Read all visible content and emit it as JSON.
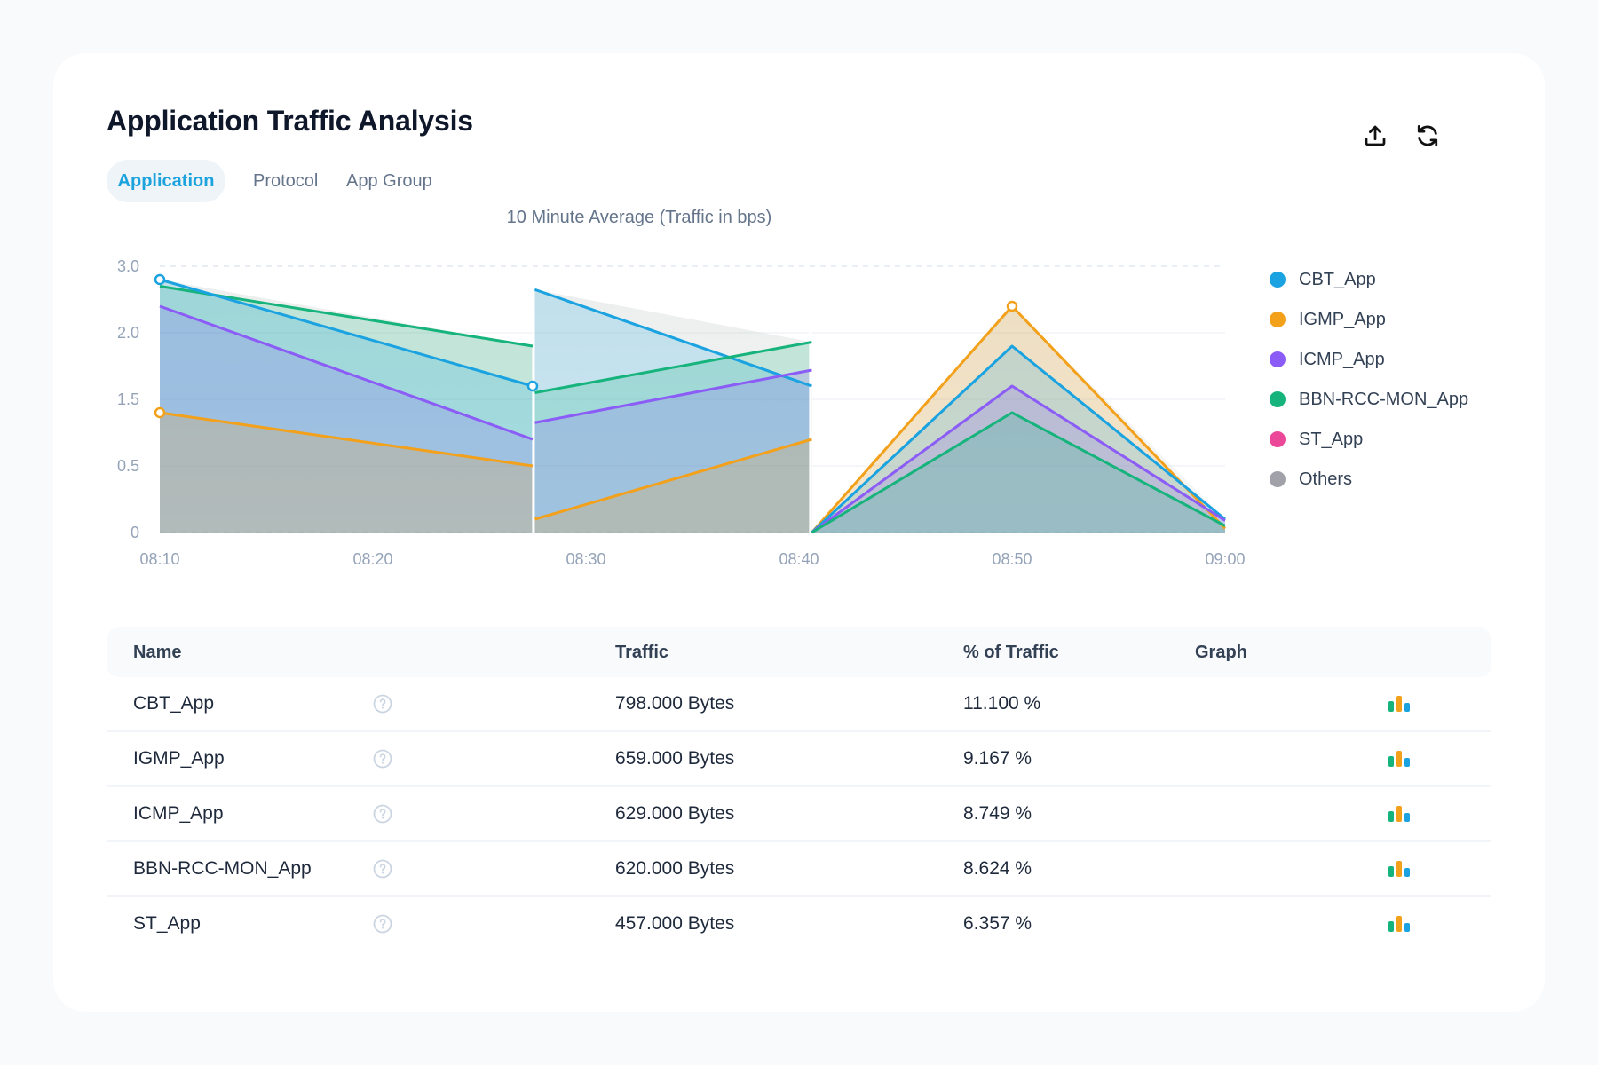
{
  "header": {
    "title": "Application Traffic Analysis",
    "actions": [
      {
        "name": "export",
        "icon": "upload-icon"
      },
      {
        "name": "refresh",
        "icon": "refresh-icon"
      }
    ]
  },
  "tabs": [
    {
      "label": "Application",
      "active": true
    },
    {
      "label": "Protocol",
      "active": false
    },
    {
      "label": "App Group",
      "active": false
    }
  ],
  "colors": {
    "accent": "#1ca3de",
    "CBT_App": "#1aa3e0",
    "IGMP_App": "#f3a01b",
    "ICMP_App": "#8b5cf6",
    "BBN-RCC-MON_App": "#16b47c",
    "ST_App": "#ec4899",
    "Others": "#a1a1aa"
  },
  "chart_data": {
    "type": "area",
    "title": "10 Minute Average (Traffic in bps)",
    "xlabel": "",
    "ylabel": "",
    "x_ticks": [
      "08:10",
      "08:20",
      "08:30",
      "08:40",
      "08:50",
      "09:00"
    ],
    "x_unit": "minutes since 08:10",
    "xlim": [
      0,
      50
    ],
    "y_ticks": [
      "0",
      "0.5",
      "1.5",
      "2.0",
      "3.0"
    ],
    "y_tick_values": [
      0,
      0.5,
      1.5,
      2.0,
      3.0
    ],
    "ylim": [
      0,
      3.0
    ],
    "grid": true,
    "legend_position": "right",
    "legend": [
      "CBT_App",
      "IGMP_App",
      "ICMP_App",
      "BBN-RCC-MON_App",
      "ST_App",
      "Others"
    ],
    "segments": [
      {
        "x": [
          0,
          17.5
        ],
        "series": [
          {
            "name": "BBN-RCC-MON_App",
            "values": [
              2.7,
              1.9
            ]
          },
          {
            "name": "CBT_App",
            "values": [
              2.8,
              1.6
            ],
            "markers": true
          },
          {
            "name": "ICMP_App",
            "values": [
              2.4,
              0.9
            ]
          },
          {
            "name": "IGMP_App",
            "values": [
              1.3,
              0.5
            ],
            "markers_first": true
          }
        ]
      },
      {
        "x": [
          17.6,
          30.6
        ],
        "series": [
          {
            "name": "CBT_App",
            "values": [
              2.65,
              1.6
            ]
          },
          {
            "name": "BBN-RCC-MON_App",
            "values": [
              1.55,
              1.93
            ]
          },
          {
            "name": "ICMP_App",
            "values": [
              1.15,
              1.72
            ]
          },
          {
            "name": "IGMP_App",
            "values": [
              0.1,
              0.9
            ]
          }
        ]
      },
      {
        "x": [
          30.6,
          40,
          50
        ],
        "series": [
          {
            "name": "IGMP_App",
            "values": [
              0,
              2.4,
              0.03
            ],
            "marker_peak": true
          },
          {
            "name": "CBT_App",
            "values": [
              0,
              1.9,
              0.1
            ]
          },
          {
            "name": "ICMP_App",
            "values": [
              0,
              1.6,
              0.09
            ]
          },
          {
            "name": "BBN-RCC-MON_App",
            "values": [
              0,
              1.3,
              0.05
            ]
          }
        ]
      }
    ]
  },
  "table": {
    "columns": [
      "Name",
      "Traffic",
      "% of Traffic",
      "Graph"
    ],
    "rows": [
      {
        "name": "CBT_App",
        "traffic": "798.000 Bytes",
        "percent": "11.100 %"
      },
      {
        "name": "IGMP_App",
        "traffic": "659.000 Bytes",
        "percent": "9.167 %"
      },
      {
        "name": "ICMP_App",
        "traffic": "629.000 Bytes",
        "percent": "8.749 %"
      },
      {
        "name": "BBN-RCC-MON_App",
        "traffic": "620.000 Bytes",
        "percent": "8.624 %"
      },
      {
        "name": "ST_App",
        "traffic": "457.000 Bytes",
        "percent": "6.357 %"
      }
    ]
  }
}
